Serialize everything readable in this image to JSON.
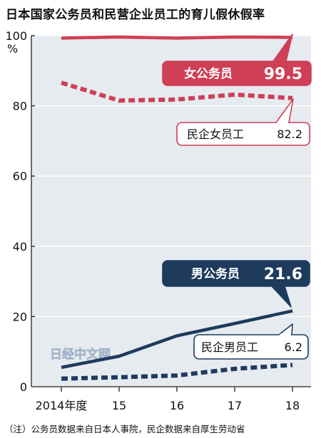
{
  "title": "日本国家公务员和民营企业员工的育儿假休假率",
  "footnote": "（注）公务员数据来自日本人事院，民企数据来自厚生劳动省",
  "watermark": "日经中文网",
  "colors": {
    "plot_bg": "#e6ebf0",
    "female_civil": "#cf3f55",
    "female_private": "#cf3f55",
    "male_civil": "#1e3b5e",
    "male_private": "#1e3b5e",
    "grid": "#ffffff",
    "axis": "#222222"
  },
  "chart_data": {
    "type": "line",
    "title": "日本国家公务员和民营企业员工的育儿假休假率",
    "x": [
      "2014年度",
      "15",
      "16",
      "17",
      "18"
    ],
    "ylim": [
      0,
      100
    ],
    "yticks": [
      0,
      20,
      40,
      60,
      80,
      100
    ],
    "yunit": "%",
    "grid": true,
    "series": [
      {
        "name": "女公务员",
        "values": [
          99.3,
          99.6,
          99.3,
          99.6,
          99.5
        ],
        "style": "solid",
        "color": "#cf3f55",
        "callout": {
          "label": "女公务员",
          "value": "99.5",
          "style": "filled"
        }
      },
      {
        "name": "民企女员工",
        "values": [
          86.6,
          81.5,
          81.8,
          83.2,
          82.2
        ],
        "style": "dotted",
        "color": "#cf3f55",
        "callout": {
          "label": "民企女员工",
          "value": "82.2",
          "style": "outlined"
        }
      },
      {
        "name": "男公务员",
        "values": [
          5.5,
          8.7,
          14.5,
          18.0,
          21.6
        ],
        "style": "solid",
        "color": "#1e3b5e",
        "callout": {
          "label": "男公务员",
          "value": "21.6",
          "style": "filled"
        }
      },
      {
        "name": "民企男员工",
        "values": [
          2.3,
          2.7,
          3.2,
          5.1,
          6.2
        ],
        "style": "dotted",
        "color": "#1e3b5e",
        "callout": {
          "label": "民企男员工",
          "value": "6.2",
          "style": "outlined"
        }
      }
    ]
  }
}
